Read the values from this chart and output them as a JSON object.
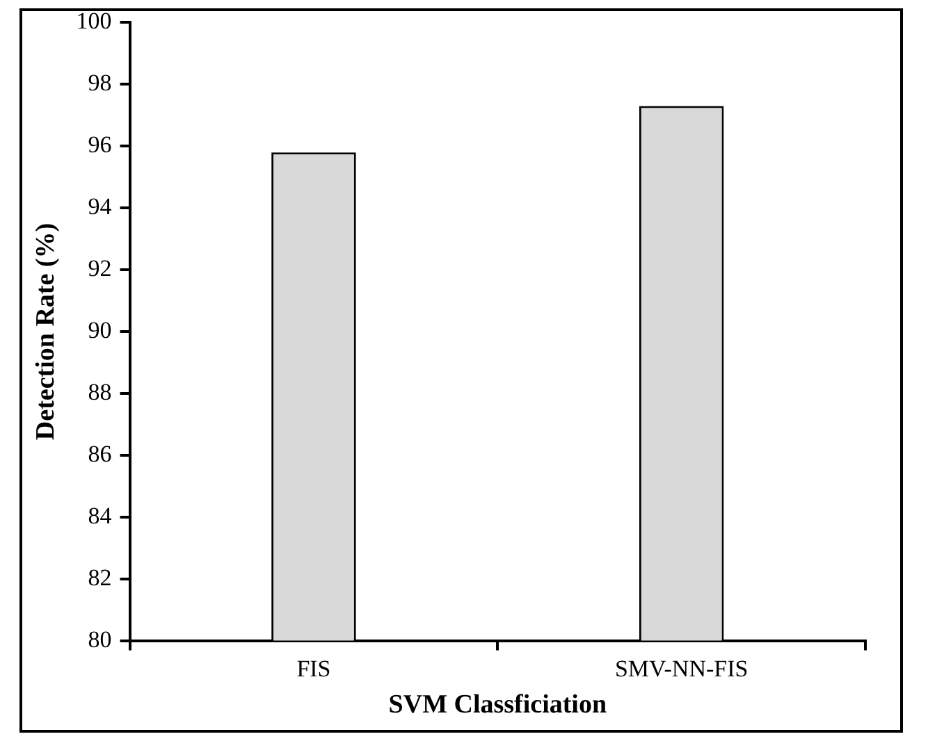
{
  "chart_data": {
    "type": "bar",
    "xlabel": "SVM Classficiation",
    "ylabel": "Detection Rate (%)",
    "categories": [
      "FIS",
      "SMV-NN-FIS"
    ],
    "values": [
      95.8,
      97.3
    ],
    "color": "#d9d9d9",
    "ylim": [
      80,
      100
    ],
    "yticks": [
      80,
      82,
      84,
      86,
      88,
      90,
      92,
      94,
      96,
      98,
      100
    ],
    "grid": false,
    "legend": false
  }
}
